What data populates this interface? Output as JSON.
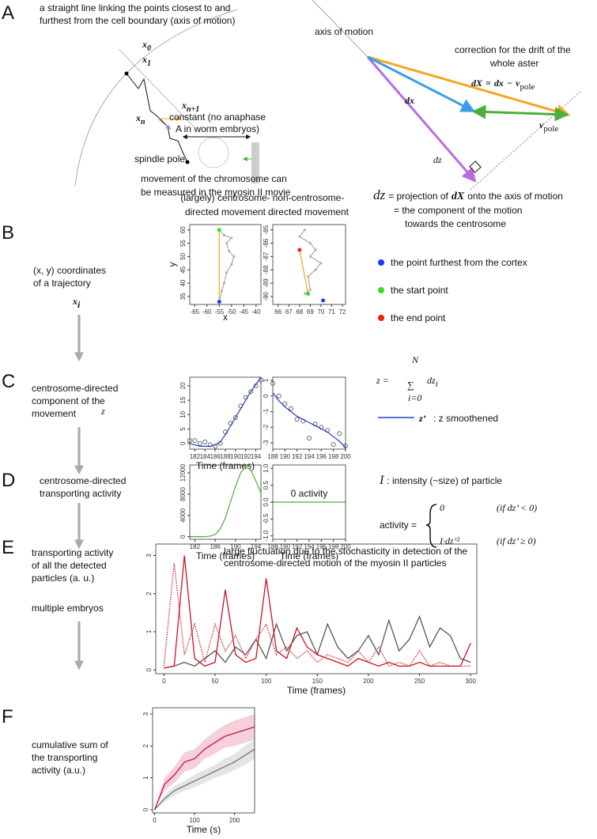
{
  "panel_labels": [
    "A",
    "B",
    "C",
    "D",
    "E",
    "F"
  ],
  "panel_a": {
    "axis_note": [
      "a straight line linking the points closest to and",
      "furthest from the cell boundary (axis of motion)"
    ],
    "points": [
      {
        "base": "x",
        "sub": "0"
      },
      {
        "base": "x",
        "sub": "1"
      },
      {
        "base": "x",
        "sub": "n"
      },
      {
        "base": "x",
        "sub": "n+1"
      }
    ],
    "constant": [
      "constant (no anaphase",
      "A in worm embryos)"
    ],
    "spindle_pole": "spindle pole",
    "chromosome": [
      "movement of the chromosome can",
      "be measured in the myosin II movie"
    ],
    "axis_of_motion": "axis of motion",
    "correction": [
      "correction for the drift of the",
      "whole aster"
    ],
    "dX_eq": {
      "lhs": "dX",
      "eq": "=",
      "dx": "dx",
      "minus": "−",
      "v": "v",
      "sub": "pole"
    },
    "dx": "dx",
    "vpole": {
      "base": "v",
      "sub": "pole"
    },
    "dz": "dz",
    "projection": {
      "dz": "dz",
      "text1": "= projection of",
      "dX": "dX",
      "text2": "onto the axis of motion"
    },
    "projection_2": "= the component of the motion",
    "projection_3": "towards the centrosome"
  },
  "panel_b": {
    "left_title": [
      "(largely) centrosome-",
      "directed movement"
    ],
    "right_title": [
      "non-centrosome-",
      "directed movement"
    ],
    "row_label": [
      "(x, y) coordinates",
      "of a trajectory"
    ],
    "symbol": {
      "base": "x",
      "sub": "i"
    },
    "legend": [
      {
        "label": "the point furthest from the cortex",
        "color": "#1a3cff"
      },
      {
        "label": "the start point",
        "color": "#33dd22"
      },
      {
        "label": "the end point",
        "color": "#ee2200"
      }
    ]
  },
  "panel_c": {
    "row_label": [
      "centrosome-directed",
      "component of the",
      "movement"
    ],
    "symbol": "z",
    "formula": {
      "lhs": "z =",
      "sum": "∑",
      "upper": "N",
      "lower": "i=0",
      "term": "dz",
      "sub": "i"
    },
    "legend_line": {
      "symbol": "z’",
      "text": ": z smoothened",
      "color": "#2040c0"
    }
  },
  "panel_d": {
    "row_label": [
      "centrosome-directed",
      "transporting activity"
    ],
    "intensity": {
      "symbol": "I",
      "text": ": intensity (~size) of particle"
    },
    "activity": {
      "lhs": "activity =",
      "case1": "0",
      "cond1": "(if dz’ < 0)",
      "case2": "I·dz’²",
      "cond2": "(if dz’ ≥ 0)"
    }
  },
  "panel_e": {
    "row_label": [
      "transporting activity",
      "of all the detected",
      "particles (a. u.)"
    ],
    "note": "multiple embryos"
  },
  "panel_f": {
    "row_label": [
      "cumulative sum of",
      "the transporting",
      "activity (a.u.)"
    ]
  },
  "chart_data": [
    {
      "type": "line",
      "xlabel": "x",
      "ylabel": "y",
      "xlim": [
        -67,
        -38
      ],
      "xticks": [
        -65,
        -60,
        -55,
        -50,
        -45,
        -40
      ],
      "ylim": [
        32,
        62
      ],
      "yticks": [
        35,
        40,
        45,
        50,
        55,
        60
      ],
      "series": [
        {
          "color": "#aaaaaa",
          "style": "line+points",
          "x": [
            -55,
            -53,
            -50,
            -52,
            -51,
            -49,
            -50,
            -52,
            -53,
            -54,
            -55
          ],
          "values": [
            60,
            58,
            57,
            55,
            52,
            50,
            47,
            44,
            40,
            37,
            33
          ]
        },
        {
          "color": "#f5a623",
          "style": "line",
          "x": [
            -55,
            -55
          ],
          "values": [
            60,
            33
          ]
        },
        {
          "color": "#33dd22",
          "style": "dot",
          "x": [
            -55
          ],
          "values": [
            60
          ]
        },
        {
          "color": "#1a3cff",
          "style": "dot",
          "x": [
            -55
          ],
          "values": [
            33
          ]
        }
      ]
    },
    {
      "type": "line",
      "xlim": [
        65.5,
        72.3
      ],
      "xticks": [
        66,
        67,
        68,
        69,
        70,
        71,
        72
      ],
      "ylim": [
        -90.6,
        -84.6
      ],
      "yticks": [
        -90,
        -89,
        -88,
        -87,
        -86,
        -85
      ],
      "series": [
        {
          "color": "#aaaaaa",
          "style": "line+points",
          "x": [
            68.5,
            68,
            69,
            69.5,
            69,
            70,
            69.5,
            68.8,
            69,
            68.5
          ],
          "values": [
            -85,
            -85.5,
            -86,
            -86.5,
            -87,
            -87.5,
            -88,
            -88.5,
            -89.5,
            -89.8
          ]
        },
        {
          "color": "#f5a623",
          "style": "line",
          "x": [
            68,
            68.8
          ],
          "values": [
            -86.5,
            -89.8
          ]
        },
        {
          "color": "#ee2200",
          "style": "dot",
          "x": [
            68
          ],
          "values": [
            -86.5
          ]
        },
        {
          "color": "#33dd22",
          "style": "dot",
          "x": [
            68.8
          ],
          "values": [
            -89.8
          ]
        },
        {
          "color": "#1a3cff",
          "style": "dot",
          "x": [
            70.2
          ],
          "values": [
            -90.3
          ]
        }
      ]
    },
    {
      "type": "line",
      "xlabel": "Time (frames)",
      "xlim": [
        181,
        195
      ],
      "xticks": [
        182,
        184,
        186,
        188,
        190,
        192,
        194
      ],
      "ylim": [
        -2,
        23
      ],
      "yticks": [
        0,
        5,
        10,
        15,
        20
      ],
      "series": [
        {
          "color": "#666666",
          "style": "circles",
          "x": [
            181,
            182,
            183,
            184,
            185,
            186,
            187,
            188,
            189,
            190,
            191,
            192,
            193,
            194,
            195
          ],
          "values": [
            1,
            1,
            0,
            0.5,
            -0.5,
            -1,
            0,
            4,
            7,
            9,
            13,
            16,
            18,
            20,
            22
          ]
        },
        {
          "color": "#2040c0",
          "style": "line",
          "x": [
            181,
            182,
            183,
            184,
            185,
            186,
            187,
            188,
            189,
            190,
            191,
            192,
            193,
            194,
            195
          ],
          "values": [
            0,
            -0.5,
            -1,
            -1,
            -1,
            -0.5,
            0.5,
            3,
            6,
            9,
            12,
            15,
            18,
            20.5,
            23
          ]
        }
      ]
    },
    {
      "type": "line",
      "xlim": [
        188,
        200
      ],
      "xticks": [
        188,
        190,
        192,
        194,
        196,
        198,
        200
      ],
      "ylim": [
        -3.4,
        1.2
      ],
      "yticks": [
        -3,
        -2,
        -1,
        0,
        1
      ],
      "series": [
        {
          "color": "#666666",
          "style": "circles",
          "x": [
            188,
            189,
            190,
            191,
            192,
            193,
            194,
            195,
            196,
            197,
            198,
            199,
            200
          ],
          "values": [
            0.8,
            0,
            -0.5,
            -0.8,
            -1.5,
            -1.6,
            -2.7,
            -1.8,
            -2,
            -2.2,
            -3.1,
            -2.4,
            -3.2
          ]
        },
        {
          "color": "#2040c0",
          "style": "line",
          "x": [
            188,
            189,
            190,
            191,
            192,
            193,
            194,
            195,
            196,
            197,
            198,
            199,
            200
          ],
          "values": [
            0.2,
            -0.3,
            -0.7,
            -1,
            -1.3,
            -1.5,
            -1.7,
            -1.9,
            -2.1,
            -2.3,
            -2.6,
            -2.9,
            -3.3
          ]
        }
      ]
    },
    {
      "type": "line",
      "xlabel": "Time (frames)",
      "xlim": [
        181,
        195
      ],
      "xticks": [
        182,
        186,
        190,
        194
      ],
      "ylim": [
        -500,
        13500
      ],
      "yticks": [
        0,
        4000,
        8000,
        12000
      ],
      "series": [
        {
          "color": "#4caf3a",
          "style": "line",
          "x": [
            181,
            182,
            183,
            184,
            185,
            186,
            187,
            188,
            189,
            190,
            191,
            192,
            193,
            194,
            195
          ],
          "values": [
            0,
            0,
            0,
            0,
            100,
            400,
            1500,
            3500,
            6500,
            9500,
            12000,
            13200,
            12500,
            10500,
            8300
          ]
        }
      ]
    },
    {
      "type": "line",
      "xlabel": "Time (frames)",
      "annotation": [
        "0 activity"
      ],
      "xlim": [
        188,
        200
      ],
      "xticks": [
        188,
        190,
        192,
        194,
        196,
        198,
        200
      ],
      "ylim": [
        -1.1,
        1.1
      ],
      "yticks": [
        {
          "value": -1,
          "label": "-1.0"
        },
        {
          "value": -0.5,
          "label": "-0.5"
        },
        {
          "value": 0,
          "label": "0.0"
        },
        {
          "value": 0.5,
          "label": "0.5"
        },
        {
          "value": 1,
          "label": "1.0"
        }
      ],
      "series": [
        {
          "color": "#4caf3a",
          "style": "line",
          "x": [
            188,
            200
          ],
          "values": [
            0,
            0
          ]
        }
      ]
    },
    {
      "type": "line",
      "xlabel": "Time (frames)",
      "annotation": [
        "large fluctuation due to the stochasticity in detection of the",
        "centrosome-directed motion of the myosin II particles"
      ],
      "xlim": [
        -8,
        306
      ],
      "xticks": [
        0,
        50,
        100,
        150,
        200,
        250,
        300
      ],
      "ylim": [
        -0.1,
        3.3
      ],
      "yticks": [
        0,
        1,
        2,
        3
      ],
      "series": [
        {
          "color": "#555555",
          "style": "line",
          "x": [
            0,
            10,
            20,
            30,
            40,
            50,
            60,
            70,
            80,
            90,
            100,
            110,
            120,
            130,
            140,
            150,
            160,
            170,
            180,
            190,
            200,
            210,
            220,
            230,
            240,
            250,
            260,
            270,
            280,
            290,
            300
          ],
          "values": [
            0.05,
            0.1,
            0.2,
            0.1,
            0.3,
            0.5,
            0.2,
            0.6,
            0.4,
            0.8,
            0.3,
            1.2,
            0.5,
            0.9,
            1,
            0.4,
            1.2,
            0.6,
            0.3,
            0.5,
            0.9,
            0.4,
            1.3,
            0.5,
            0.8,
            1.4,
            0.6,
            1.1,
            0.9,
            0.3,
            0.2
          ]
        },
        {
          "color": "#cc2233",
          "style": "dotted",
          "x": [
            0,
            10,
            20,
            30,
            40,
            50,
            60,
            70,
            80,
            90,
            100,
            110,
            120,
            130,
            140,
            150,
            160,
            170,
            180,
            190,
            200,
            210,
            220,
            230,
            240,
            250,
            260,
            270,
            280,
            290,
            300
          ],
          "values": [
            0.1,
            2.8,
            0.4,
            1.2,
            0.2,
            1.2,
            0.5,
            0.9,
            0.3,
            0.8,
            1.2,
            0.4,
            0.6,
            0.3,
            0.5,
            0.2,
            0.4,
            0.3,
            0.2,
            0.5,
            0.2,
            0.6,
            0.1,
            0.2,
            0.1,
            0.5,
            0.1,
            0.2,
            0.1,
            0.1,
            0.1
          ]
        },
        {
          "color": "#cc1122",
          "style": "line",
          "x": [
            0,
            10,
            20,
            30,
            40,
            50,
            60,
            70,
            80,
            90,
            100,
            110,
            120,
            130,
            140,
            150,
            160,
            170,
            180,
            190,
            200,
            210,
            220,
            230,
            240,
            250,
            260,
            270,
            280,
            290,
            300
          ],
          "values": [
            0.05,
            0.1,
            3,
            0.3,
            0.1,
            0.2,
            2.1,
            0.4,
            0.2,
            0.3,
            2.4,
            0.5,
            0.3,
            1.1,
            0.6,
            0.4,
            0.3,
            0.2,
            0.1,
            0.3,
            0.2,
            0.1,
            0.2,
            0.1,
            0.1,
            0.2,
            0.1,
            0.1,
            0.1,
            0.1,
            0.7
          ]
        }
      ]
    },
    {
      "type": "line",
      "xlabel": "Time (s)",
      "xlim": [
        -5,
        250
      ],
      "xticks": [
        0,
        100,
        200
      ],
      "ylim": [
        -0.1,
        3.2
      ],
      "yticks": [
        0,
        1,
        2,
        3
      ],
      "series": [
        {
          "color": "#777777",
          "style": "line",
          "x": [
            0,
            25,
            50,
            75,
            100,
            125,
            150,
            175,
            200,
            225,
            250
          ],
          "values": [
            0,
            0.35,
            0.6,
            0.75,
            0.9,
            1.05,
            1.2,
            1.35,
            1.5,
            1.7,
            1.9
          ],
          "error": [
            0,
            0.1,
            0.15,
            0.15,
            0.2,
            0.2,
            0.2,
            0.25,
            0.25,
            0.3,
            0.3
          ]
        },
        {
          "color": "#cc1144",
          "style": "line",
          "x": [
            0,
            25,
            50,
            75,
            100,
            125,
            150,
            175,
            200,
            225,
            250
          ],
          "values": [
            0,
            0.8,
            1.1,
            1.5,
            1.6,
            1.9,
            2.1,
            2.3,
            2.4,
            2.5,
            2.6
          ],
          "error": [
            0,
            0.2,
            0.25,
            0.3,
            0.3,
            0.3,
            0.35,
            0.35,
            0.4,
            0.4,
            0.4
          ]
        }
      ]
    }
  ]
}
